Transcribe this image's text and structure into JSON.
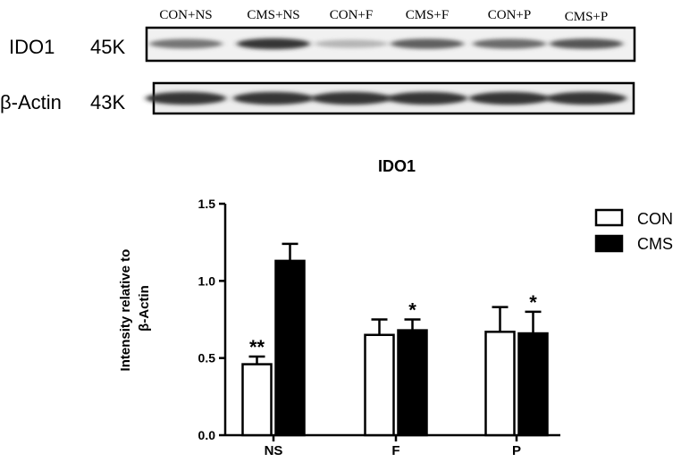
{
  "blot": {
    "lane_labels": [
      "CON+NS",
      "CMS+NS",
      "CON+F",
      "CMS+F",
      "CON+P",
      "CMS+P"
    ],
    "rows": [
      {
        "name": "IDO1",
        "size": "45K",
        "band_intensity": [
          0.55,
          0.85,
          0.25,
          0.65,
          0.6,
          0.7
        ]
      },
      {
        "name": "β-Actin",
        "size": "43K",
        "band_intensity": [
          0.85,
          0.85,
          0.85,
          0.85,
          0.85,
          0.85
        ]
      }
    ]
  },
  "chart_data": {
    "type": "bar",
    "title": "IDO1",
    "xlabel": "",
    "ylabel": "Intensity relative to β-Actin",
    "ylabel_lines": [
      "Intensity relative to",
      "β-Actin"
    ],
    "categories": [
      "NS",
      "F",
      "P"
    ],
    "ylim": [
      0,
      1.5
    ],
    "yticks": [
      "0.0",
      "0.5",
      "1.0",
      "1.5"
    ],
    "ytick_values": [
      0,
      0.5,
      1.0,
      1.5
    ],
    "grid": false,
    "legend_position": "top-right",
    "series": [
      {
        "name": "CON",
        "fill": "#ffffff",
        "values": [
          0.46,
          0.65,
          0.67
        ],
        "errors": [
          0.05,
          0.1,
          0.16
        ],
        "annotations": [
          "**",
          "",
          ""
        ]
      },
      {
        "name": "CMS",
        "fill": "#000000",
        "values": [
          1.13,
          0.68,
          0.66
        ],
        "errors": [
          0.11,
          0.07,
          0.14
        ],
        "annotations": [
          "",
          "*",
          "*"
        ]
      }
    ]
  }
}
